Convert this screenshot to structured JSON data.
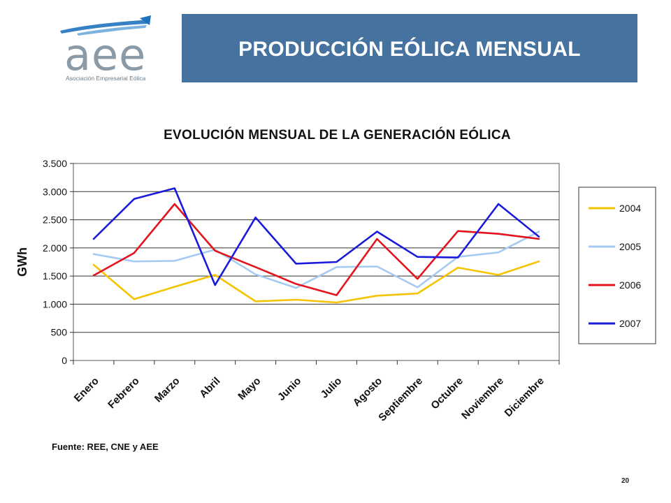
{
  "header": {
    "title": "PRODUCCIÓN EÓLICA MENSUAL",
    "logo_text": "aee",
    "logo_subtitle": "Asociación Empresarial Eólica"
  },
  "footer": {
    "source": "Fuente:  REE, CNE y AEE",
    "page_number": "20"
  },
  "colors": {
    "header_bar": "#45729f",
    "s2004": "#f5c400",
    "s2005": "#a6cbf2",
    "s2006": "#e3141e",
    "s2007": "#1a1adb"
  },
  "chart_data": {
    "type": "line",
    "title": "EVOLUCIÓN MENSUAL DE LA GENERACIÓN EÓLICA",
    "xlabel": "",
    "ylabel": "GWh",
    "ylim": [
      0,
      3500
    ],
    "yticks": [
      0,
      500,
      1000,
      1500,
      2000,
      2500,
      3000,
      3500
    ],
    "ytick_labels": [
      "0",
      "500",
      "1.000",
      "1.500",
      "2.000",
      "2.500",
      "3.000",
      "3.500"
    ],
    "categories": [
      "Enero",
      "Febrero",
      "Marzo",
      "Abril",
      "Mayo",
      "Junio",
      "Julio",
      "Agosto",
      "Septiembre",
      "Octubre",
      "Noviembre",
      "Diciembre"
    ],
    "grid": true,
    "legend": "right",
    "series": [
      {
        "name": "2004",
        "color": "#f5c400",
        "values": [
          1700,
          1090,
          1310,
          1520,
          1050,
          1080,
          1030,
          1150,
          1190,
          1650,
          1520,
          1760
        ]
      },
      {
        "name": "2005",
        "color": "#a6cbf2",
        "values": [
          1890,
          1760,
          1770,
          1970,
          1530,
          1290,
          1660,
          1670,
          1300,
          1840,
          1920,
          2290
        ]
      },
      {
        "name": "2006",
        "color": "#e3141e",
        "values": [
          1510,
          1910,
          2780,
          1950,
          1660,
          1360,
          1160,
          2160,
          1450,
          2300,
          2250,
          2160
        ]
      },
      {
        "name": "2007",
        "color": "#1a1adb",
        "values": [
          2160,
          2870,
          3060,
          1340,
          2540,
          1720,
          1750,
          2290,
          1840,
          1830,
          2780,
          2200
        ]
      }
    ]
  }
}
